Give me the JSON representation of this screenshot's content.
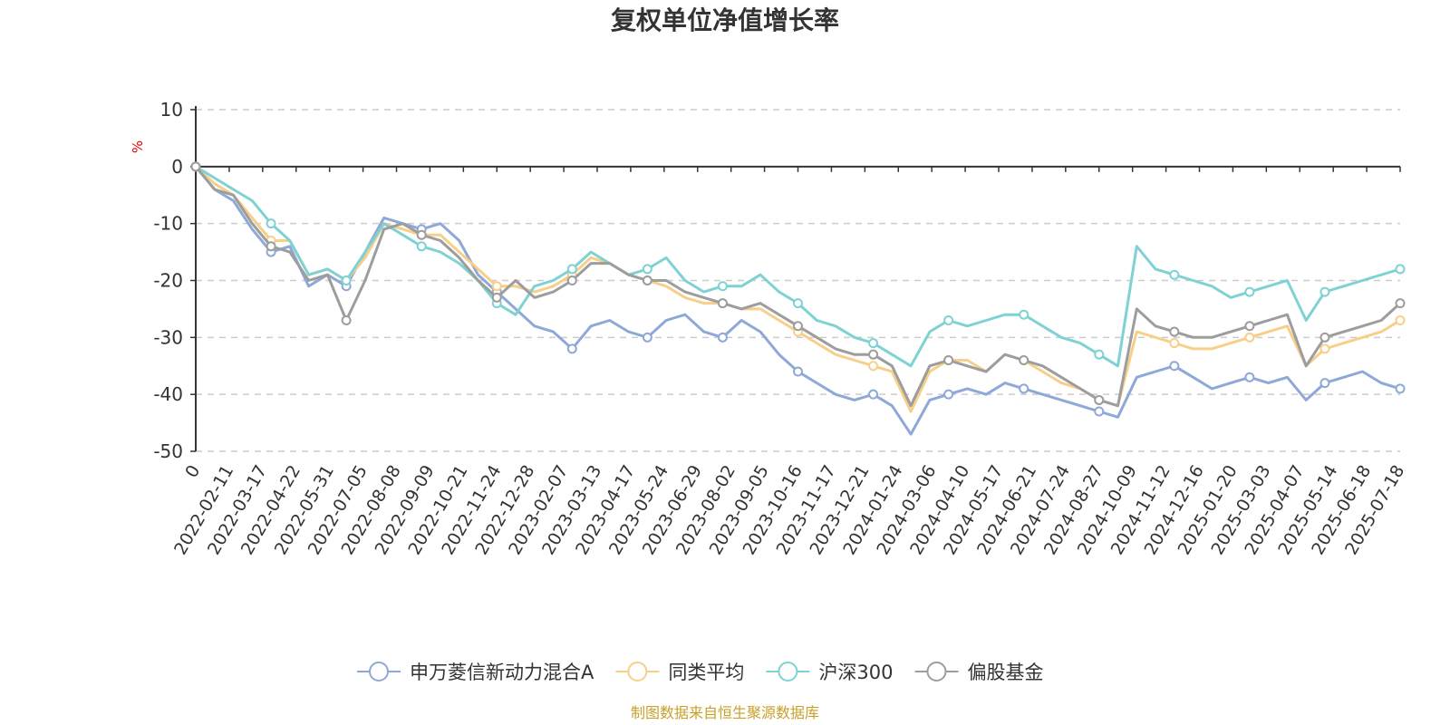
{
  "chart_data": {
    "type": "line",
    "title": "复权单位净值增长率",
    "y_unit": "%",
    "ylim": [
      -50,
      10
    ],
    "y_ticks": [
      "10",
      "0",
      "-10",
      "-20",
      "-30",
      "-40",
      "-50"
    ],
    "grid": true,
    "legend_position": "bottom",
    "x_labels": [
      "0",
      "2022-02-11",
      "2022-03-17",
      "2022-04-22",
      "2022-05-31",
      "2022-07-05",
      "2022-08-08",
      "2022-09-09",
      "2022-10-21",
      "2022-11-24",
      "2022-12-28",
      "2023-02-07",
      "2023-03-13",
      "2023-04-17",
      "2023-05-24",
      "2023-06-29",
      "2023-08-02",
      "2023-09-05",
      "2023-10-16",
      "2023-11-17",
      "2023-12-21",
      "2024-01-24",
      "2024-03-06",
      "2024-04-10",
      "2024-05-17",
      "2024-06-21",
      "2024-07-24",
      "2024-08-27",
      "2024-10-09",
      "2024-11-12",
      "2024-12-16",
      "2025-01-20",
      "2025-03-03",
      "2025-04-07",
      "2025-05-14",
      "2025-06-18",
      "2025-07-18"
    ],
    "series": [
      {
        "name": "申万菱信新动力混合A",
        "color": "#8ea8d8",
        "values": [
          0,
          -4,
          -6,
          -11,
          -15,
          -14,
          -21,
          -19,
          -21,
          -15,
          -9,
          -10,
          -11,
          -10,
          -13,
          -19,
          -22,
          -25,
          -28,
          -29,
          -32,
          -28,
          -27,
          -29,
          -30,
          -27,
          -26,
          -29,
          -30,
          -27,
          -29,
          -33,
          -36,
          -38,
          -40,
          -41,
          -40,
          -42,
          -47,
          -41,
          -40,
          -39,
          -40,
          -38,
          -39,
          -40,
          -41,
          -42,
          -43,
          -44,
          -37,
          -36,
          -35,
          -37,
          -39,
          -38,
          -37,
          -38,
          -37,
          -41,
          -38,
          -37,
          -36,
          -38,
          -39
        ]
      },
      {
        "name": "同类平均",
        "color": "#f7cf89",
        "values": [
          0,
          -3,
          -5,
          -9,
          -13,
          -13,
          -19,
          -18,
          -20,
          -16,
          -10,
          -11,
          -12,
          -12,
          -15,
          -18,
          -21,
          -21,
          -22,
          -21,
          -19,
          -16,
          -17,
          -19,
          -20,
          -21,
          -23,
          -24,
          -24,
          -25,
          -25,
          -27,
          -29,
          -31,
          -33,
          -34,
          -35,
          -36,
          -43,
          -36,
          -34,
          -34,
          -36,
          -33,
          -34,
          -36,
          -38,
          -39,
          -41,
          -42,
          -29,
          -30,
          -31,
          -32,
          -32,
          -31,
          -30,
          -29,
          -28,
          -35,
          -32,
          -31,
          -30,
          -29,
          -27
        ]
      },
      {
        "name": "沪深300",
        "color": "#7fd2d3",
        "values": [
          0,
          -2,
          -4,
          -6,
          -10,
          -13,
          -19,
          -18,
          -20,
          -15,
          -10,
          -12,
          -14,
          -15,
          -17,
          -20,
          -24,
          -26,
          -21,
          -20,
          -18,
          -15,
          -17,
          -19,
          -18,
          -16,
          -20,
          -22,
          -21,
          -21,
          -19,
          -22,
          -24,
          -27,
          -28,
          -30,
          -31,
          -33,
          -35,
          -29,
          -27,
          -28,
          -27,
          -26,
          -26,
          -28,
          -30,
          -31,
          -33,
          -35,
          -14,
          -18,
          -19,
          -20,
          -21,
          -23,
          -22,
          -21,
          -20,
          -27,
          -22,
          -21,
          -20,
          -19,
          -18
        ]
      },
      {
        "name": "偏股基金",
        "color": "#9d9d9d",
        "values": [
          0,
          -4,
          -5,
          -10,
          -14,
          -15,
          -20,
          -19,
          -27,
          -20,
          -11,
          -10,
          -12,
          -13,
          -16,
          -20,
          -23,
          -20,
          -23,
          -22,
          -20,
          -17,
          -17,
          -19,
          -20,
          -20,
          -22,
          -23,
          -24,
          -25,
          -24,
          -26,
          -28,
          -30,
          -32,
          -33,
          -33,
          -35,
          -42,
          -35,
          -34,
          -35,
          -36,
          -33,
          -34,
          -35,
          -37,
          -39,
          -41,
          -42,
          -25,
          -28,
          -29,
          -30,
          -30,
          -29,
          -28,
          -27,
          -26,
          -35,
          -30,
          -29,
          -28,
          -27,
          -24
        ]
      }
    ]
  },
  "footer": {
    "source": "制图数据来自恒生聚源数据库"
  }
}
